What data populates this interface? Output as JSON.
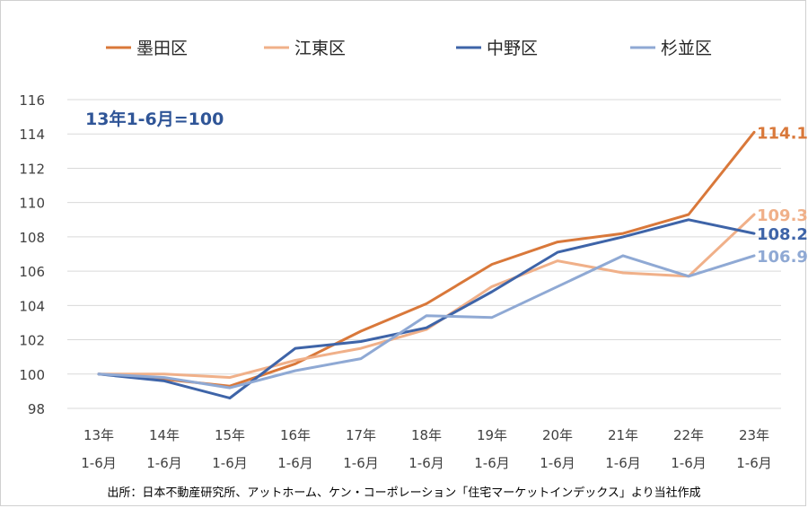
{
  "chart_data": {
    "type": "line",
    "title": "",
    "xlabel": "",
    "ylabel": "",
    "annotation": "13年1-6月=100",
    "categories": [
      [
        "13年",
        "1-6月"
      ],
      [
        "14年",
        "1-6月"
      ],
      [
        "15年",
        "1-6月"
      ],
      [
        "16年",
        "1-6月"
      ],
      [
        "17年",
        "1-6月"
      ],
      [
        "18年",
        "1-6月"
      ],
      [
        "19年",
        "1-6月"
      ],
      [
        "20年",
        "1-6月"
      ],
      [
        "21年",
        "1-6月"
      ],
      [
        "22年",
        "1-6月"
      ],
      [
        "23年",
        "1-6月"
      ]
    ],
    "ylim": [
      98,
      116
    ],
    "yticks": [
      "98",
      "100",
      "102",
      "104",
      "106",
      "108",
      "110",
      "112",
      "114",
      "116"
    ],
    "grid": true,
    "legend_position": "top",
    "series": [
      {
        "name": "墨田区",
        "color": "#d9783a",
        "values": [
          100,
          99.7,
          99.3,
          100.6,
          102.5,
          104.1,
          106.4,
          107.7,
          108.2,
          109.3,
          114.1
        ],
        "end_label": "114.1"
      },
      {
        "name": "江東区",
        "color": "#f0b089",
        "values": [
          100,
          100.0,
          99.8,
          100.8,
          101.5,
          102.6,
          105.1,
          106.6,
          105.9,
          105.7,
          109.3
        ],
        "end_label": "109.3"
      },
      {
        "name": "中野区",
        "color": "#3e64a8",
        "values": [
          100,
          99.6,
          98.6,
          101.5,
          101.9,
          102.7,
          104.8,
          107.1,
          108.0,
          109.0,
          108.2
        ],
        "end_label": "108.2"
      },
      {
        "name": "杉並区",
        "color": "#8fa9d4",
        "values": [
          100,
          99.8,
          99.2,
          100.2,
          100.9,
          103.4,
          103.3,
          105.1,
          106.9,
          105.7,
          106.9
        ],
        "end_label": "106.9"
      }
    ]
  },
  "source_note": "出所：日本不動産研究所、アットホーム、ケン・コーポレーション「住宅マーケットインデックス」より当社作成"
}
